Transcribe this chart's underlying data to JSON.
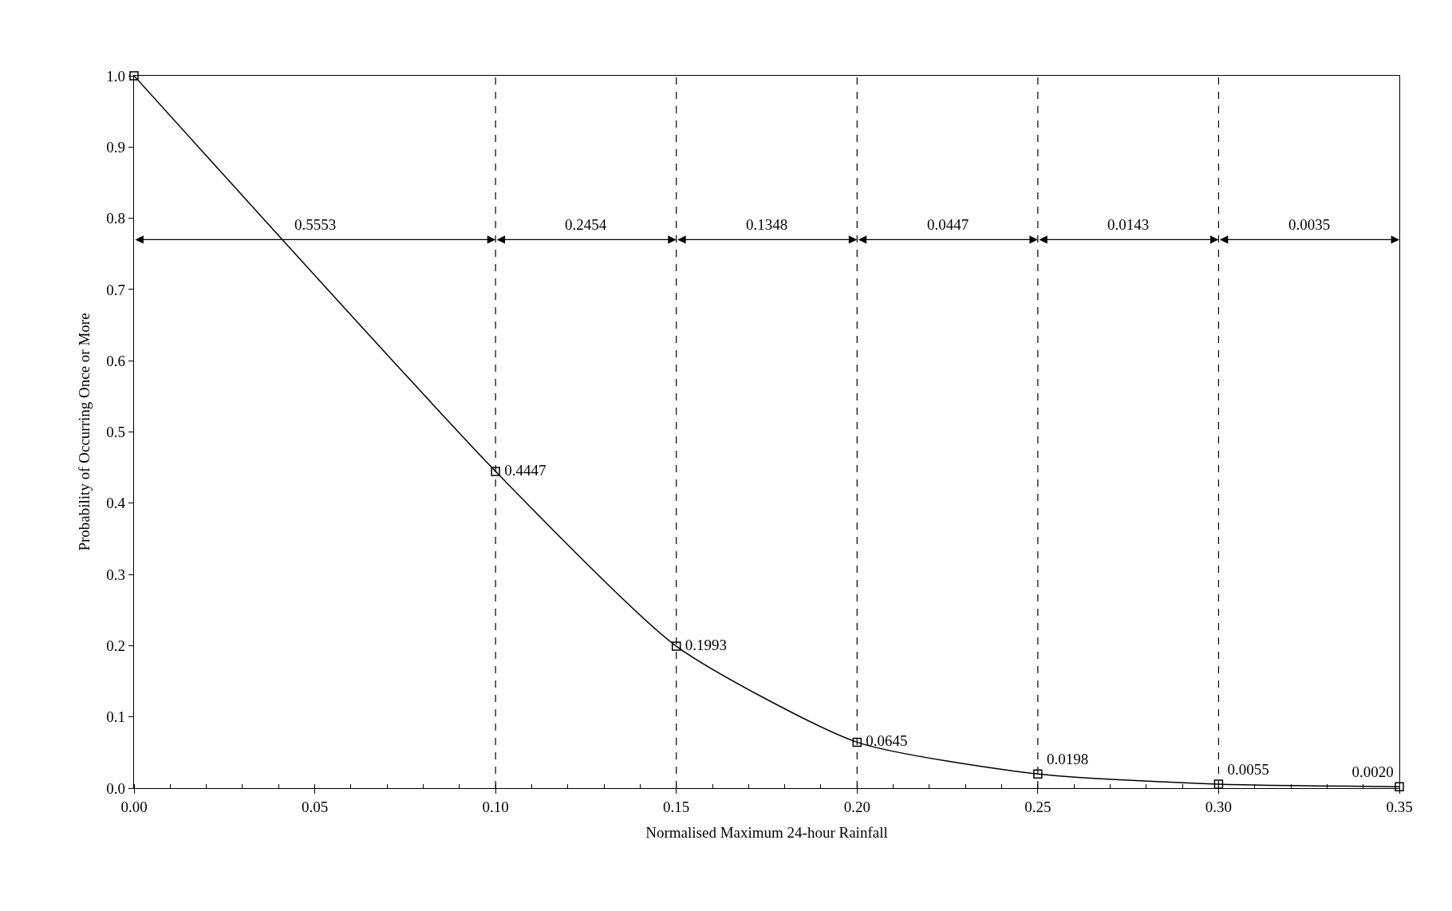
{
  "chart_data": {
    "type": "line",
    "xlabel": "Normalised Maximum 24-hour Rainfall",
    "ylabel": "Probability of Occurring Once or More",
    "x": [
      0.0,
      0.1,
      0.15,
      0.2,
      0.25,
      0.3,
      0.35
    ],
    "series": [
      {
        "color": "#000000",
        "values": [
          1.0,
          0.4447,
          0.1993,
          0.0645,
          0.0198,
          0.0055,
          0.002
        ],
        "value_labels": [
          null,
          "0.4447",
          "0.1993",
          "0.0645",
          "0.0198",
          "0.0055",
          "0.0020"
        ]
      }
    ],
    "marker": "square",
    "line_style": "solid",
    "legend": false,
    "xlim": [
      0.0,
      0.35
    ],
    "xticks": [
      {
        "value": 0,
        "label": "0.00"
      },
      0.05,
      {
        "value": 0.1,
        "label": "0.10"
      },
      0.15,
      {
        "value": 0.2,
        "label": "0.20"
      },
      0.25,
      {
        "value": 0.3,
        "label": "0.30"
      },
      0.35
    ],
    "ylim": [
      0.0,
      1.0
    ],
    "yticks": [
      {
        "value": 0,
        "label": "0.0"
      },
      0.1,
      0.2,
      0.3,
      0.4,
      0.5,
      0.6,
      0.7,
      0.8,
      0.9,
      {
        "value": 1,
        "label": "1.0"
      }
    ],
    "ref_lines": [
      {
        "axis": "x",
        "value": 0.1,
        "color": "#000000",
        "line_style": "dashed"
      },
      {
        "axis": "x",
        "value": 0.15,
        "color": "#000000",
        "line_style": "dashed"
      },
      {
        "axis": "x",
        "value": 0.2,
        "color": "#000000",
        "line_style": "dashed"
      },
      {
        "axis": "x",
        "value": 0.25,
        "color": "#000000",
        "line_style": "dashed"
      },
      {
        "axis": "x",
        "value": 0.3,
        "color": "#000000",
        "line_style": "dashed"
      }
    ],
    "annotations": [
      "0.5553",
      "0.2454",
      "0.1348",
      "0.0447",
      "0.0143",
      "0.0035"
    ]
  }
}
